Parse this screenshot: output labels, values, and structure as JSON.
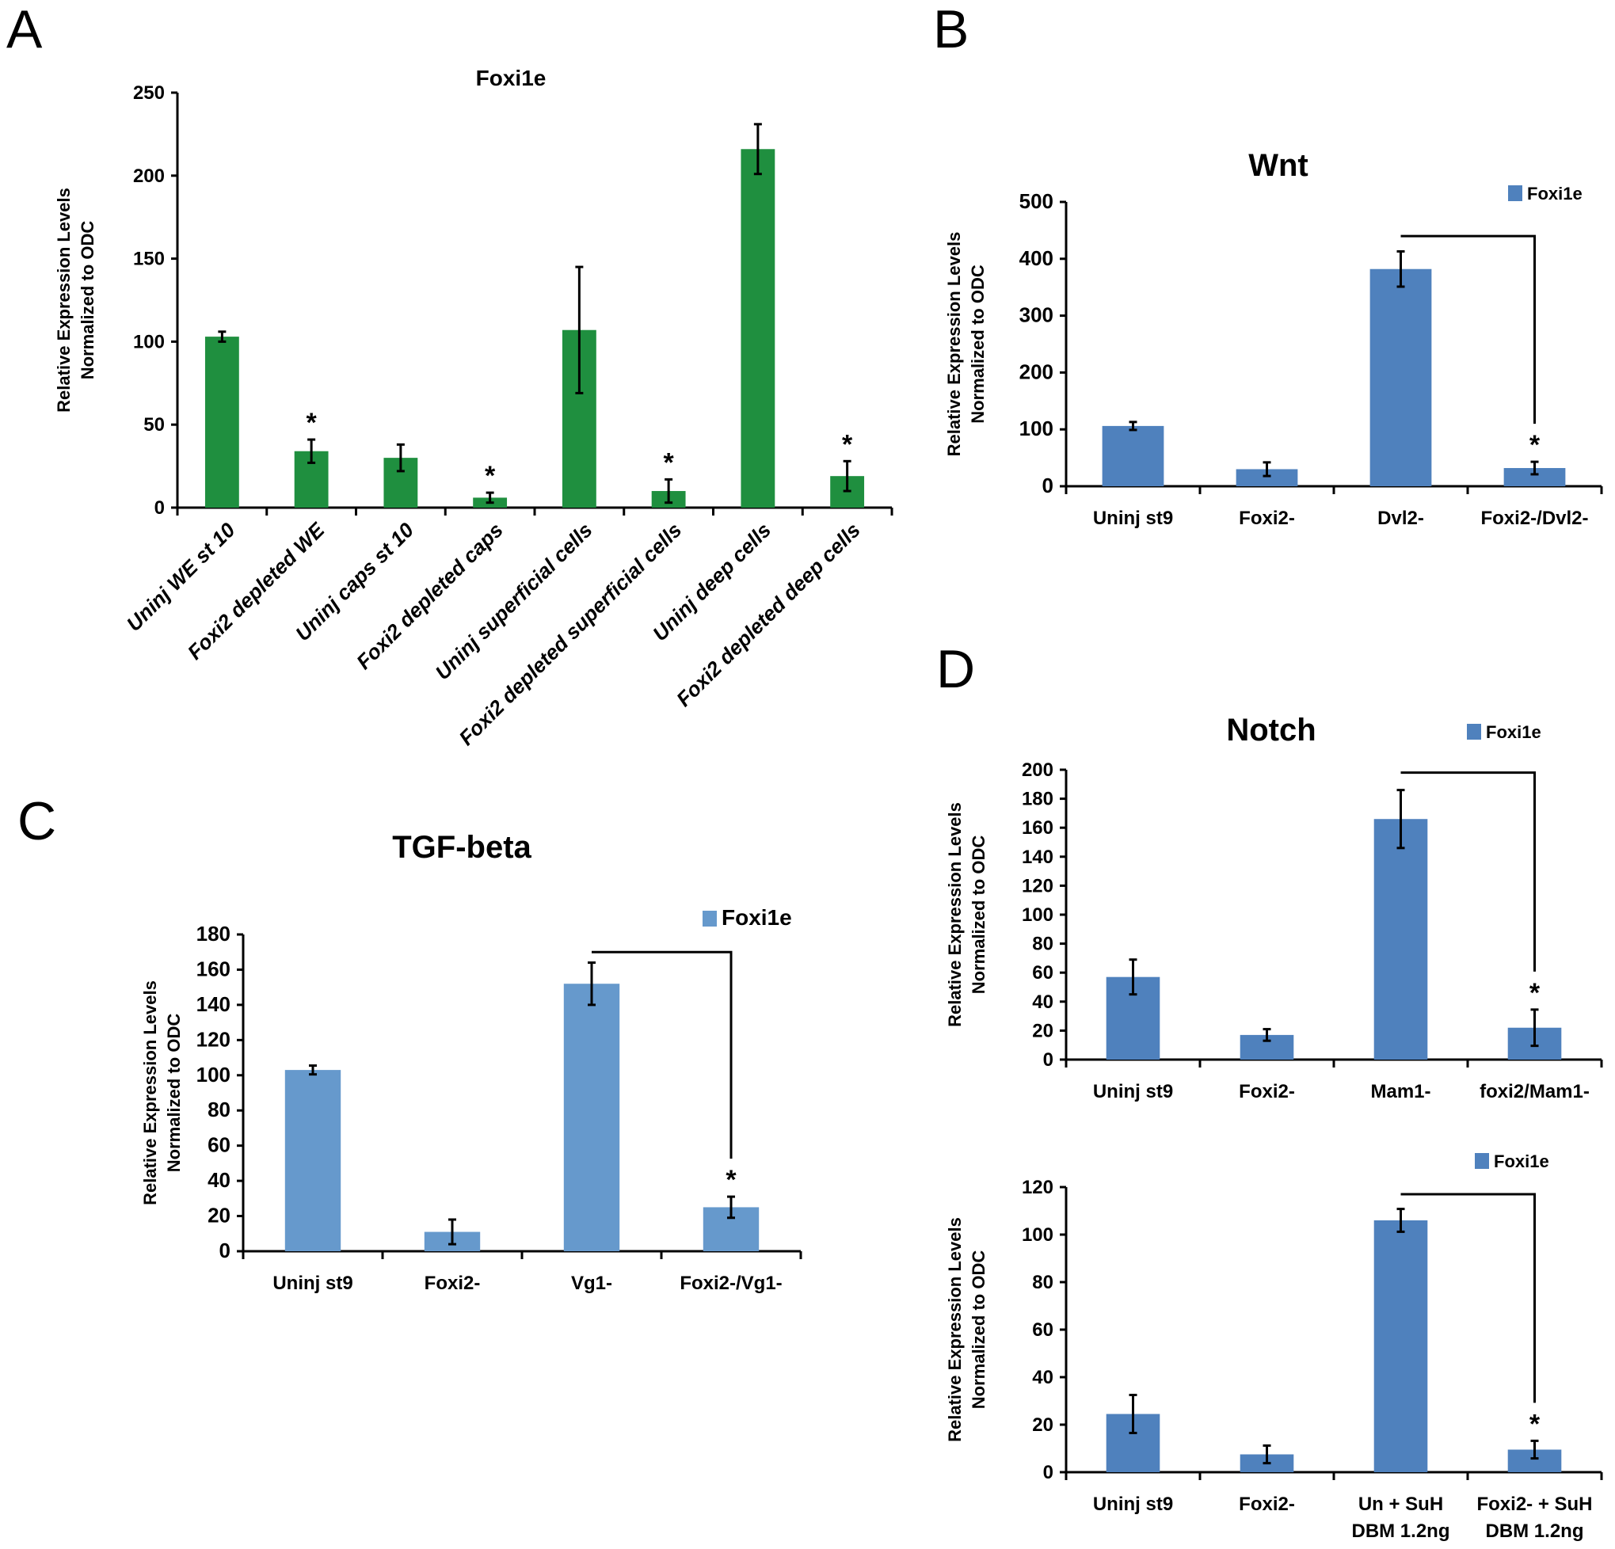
{
  "figure": {
    "panel_letters": [
      "A",
      "B",
      "C",
      "D"
    ]
  },
  "chart_data": [
    {
      "id": "A",
      "type": "bar",
      "title": "Foxi1e",
      "ylabel": [
        "Relative Expression Levels",
        "Normalized to ODC"
      ],
      "xlabel": "",
      "ylim": [
        0,
        250
      ],
      "yticks": [
        0,
        50,
        100,
        150,
        200,
        250
      ],
      "color": "#1f8f3f",
      "legend": null,
      "categories": [
        "Uninj WE st 10",
        "Foxi2 depleted WE",
        "Uninj caps st 10",
        "Foxi2 depleted caps",
        "Uninj superficial cells",
        "Foxi2 depleted superficial cells",
        "Uninj deep cells",
        "Foxi2 depleted deep cells"
      ],
      "values": [
        103,
        34,
        30,
        6,
        107,
        10,
        216,
        19
      ],
      "errors": [
        3,
        7,
        8,
        3,
        38,
        7,
        15,
        9
      ],
      "significance": [
        false,
        true,
        false,
        true,
        false,
        true,
        false,
        true
      ],
      "bracket": null,
      "rotated_labels": true
    },
    {
      "id": "B",
      "type": "bar",
      "title": "Wnt",
      "ylabel": [
        "Relative Expression Levels",
        "Normalized to ODC"
      ],
      "xlabel": "",
      "ylim": [
        0,
        500
      ],
      "yticks": [
        0,
        100,
        200,
        300,
        400,
        500
      ],
      "color": "#4f81bd",
      "legend": {
        "label": "Foxi1e",
        "position": "top-right"
      },
      "categories": [
        "Uninj st9",
        "Foxi2-",
        "Dvl2-",
        "Foxi2-/Dvl2-"
      ],
      "values": [
        106,
        30,
        382,
        32
      ],
      "errors": [
        7,
        12,
        31,
        11
      ],
      "significance": [
        false,
        false,
        false,
        true
      ],
      "bracket": {
        "from": 2,
        "to": 3,
        "level": 440
      }
    },
    {
      "id": "C",
      "type": "bar",
      "title": "TGF-beta",
      "ylabel": [
        "Relative Expression Levels",
        "Normalized to ODC"
      ],
      "xlabel": "",
      "ylim": [
        0,
        180
      ],
      "yticks": [
        0,
        20,
        40,
        60,
        80,
        100,
        120,
        140,
        160,
        180
      ],
      "color": "#6699cc",
      "legend": {
        "label": "Foxi1e",
        "position": "top-right"
      },
      "categories": [
        "Uninj st9",
        "Foxi2-",
        "Vg1-",
        "Foxi2-/Vg1-"
      ],
      "values": [
        103,
        11,
        152,
        25
      ],
      "errors": [
        2.5,
        7,
        12,
        6
      ],
      "significance": [
        false,
        false,
        false,
        true
      ],
      "bracket": {
        "from": 2,
        "to": 3,
        "level": 170
      }
    },
    {
      "id": "D1",
      "type": "bar",
      "title": "Notch",
      "ylabel": [
        "Relative Expression Levels",
        "Normalized to ODC"
      ],
      "xlabel": "",
      "ylim": [
        0,
        200
      ],
      "yticks": [
        0,
        20,
        40,
        60,
        80,
        100,
        120,
        140,
        160,
        180,
        200
      ],
      "color": "#4f81bd",
      "legend": {
        "label": "Foxi1e",
        "position": "top-right"
      },
      "categories": [
        "Uninj st9",
        "Foxi2-",
        "Mam1-",
        "foxi2/Mam1-"
      ],
      "values": [
        57,
        17,
        166,
        22
      ],
      "errors": [
        12,
        4,
        20,
        12.5
      ],
      "significance": [
        false,
        false,
        false,
        true
      ],
      "bracket": {
        "from": 2,
        "to": 3,
        "level": 198
      }
    },
    {
      "id": "D2",
      "type": "bar",
      "title": "",
      "ylabel": [
        "Relative Expression Levels",
        "Normalized to ODC"
      ],
      "xlabel": "",
      "ylim": [
        0,
        120
      ],
      "yticks": [
        0,
        20,
        40,
        60,
        80,
        100,
        120
      ],
      "color": "#4f81bd",
      "legend": {
        "label": "Foxi1e",
        "position": "top-right"
      },
      "categories": [
        [
          "Uninj st9"
        ],
        [
          "Foxi2-"
        ],
        [
          "Un + SuH",
          "DBM 1.2ng"
        ],
        [
          "Foxi2- + SuH",
          "DBM 1.2ng"
        ]
      ],
      "values": [
        24.5,
        7.5,
        106,
        9.5
      ],
      "errors": [
        8,
        3.7,
        4.8,
        3.7
      ],
      "significance": [
        false,
        false,
        false,
        true
      ],
      "bracket": {
        "from": 2,
        "to": 3,
        "level": 117
      }
    }
  ]
}
